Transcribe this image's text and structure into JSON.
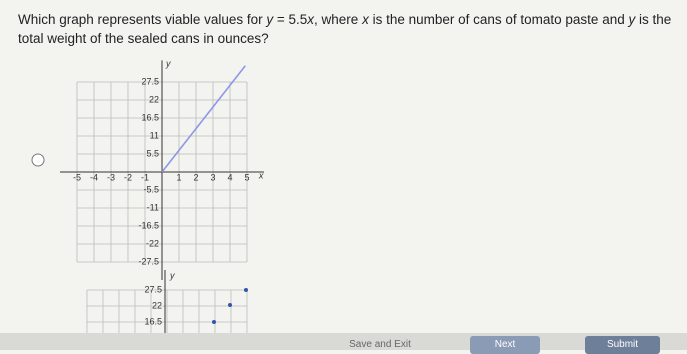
{
  "question": {
    "parts": [
      "Which graph represents viable values for ",
      "y",
      " = 5.5",
      "x",
      ", where ",
      "x",
      " is the number of cans of tomato paste and ",
      "y",
      " is the total weight of the sealed cans in ounces?"
    ]
  },
  "option_1": {
    "x_axis_label": "x",
    "y_axis_label": "y",
    "x_labels": [
      "-5",
      "-4",
      "-3",
      "-2",
      "-1",
      "1",
      "2",
      "3",
      "4",
      "5"
    ],
    "y_labels": [
      "27.5",
      "22",
      "16.5",
      "11",
      "5.5",
      "-5.5",
      "-11",
      "-16.5",
      "-22",
      "-27.5"
    ]
  },
  "option_2": {
    "y_axis_label": "y",
    "y_labels": [
      "27.5",
      "22",
      "16.5"
    ]
  },
  "buttons": {
    "save": "Save and Exit",
    "next": "Next",
    "submit": "Submit"
  }
}
